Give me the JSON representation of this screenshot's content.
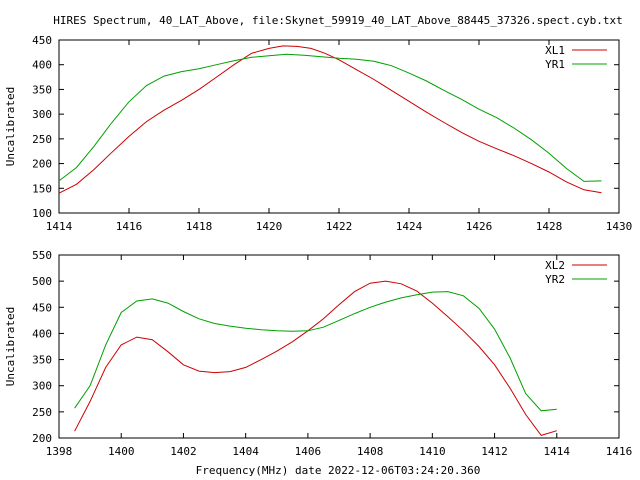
{
  "title": "HIRES Spectrum, 40_LAT_Above, file:Skynet_59919_40_LAT_Above_88445_37326.spect.cyb.txt",
  "footer_xlabel": "Frequency(MHz) date 2022-12-06T03:24:20.360",
  "colors": {
    "red": "#cc0000",
    "green": "#00a000",
    "axis": "#000000",
    "background": "#ffffff"
  },
  "chart_data": [
    {
      "type": "line",
      "ylabel": "Uncalibrated",
      "xlim": [
        1414,
        1430
      ],
      "ylim": [
        100,
        450
      ],
      "xticks": [
        1414,
        1416,
        1418,
        1420,
        1422,
        1424,
        1426,
        1428,
        1430
      ],
      "yticks": [
        100,
        150,
        200,
        250,
        300,
        350,
        400,
        450
      ],
      "grid": false,
      "legend_position": "top-right",
      "series": [
        {
          "name": "XL1",
          "color": "#cc0000",
          "x": [
            1414.0,
            1414.5,
            1415.0,
            1415.5,
            1416.0,
            1416.5,
            1417.0,
            1417.5,
            1418.0,
            1418.5,
            1419.0,
            1419.5,
            1420.0,
            1420.4,
            1420.8,
            1421.2,
            1421.6,
            1422.0,
            1422.5,
            1423.0,
            1423.5,
            1424.0,
            1424.5,
            1425.0,
            1425.5,
            1426.0,
            1426.5,
            1427.0,
            1427.5,
            1428.0,
            1428.5,
            1429.0,
            1429.5
          ],
          "y": [
            140,
            158,
            188,
            222,
            255,
            285,
            308,
            328,
            350,
            375,
            400,
            423,
            433,
            438,
            437,
            433,
            423,
            410,
            390,
            370,
            348,
            326,
            304,
            283,
            263,
            245,
            230,
            216,
            200,
            183,
            163,
            147,
            141
          ]
        },
        {
          "name": "YR1",
          "color": "#00a000",
          "x": [
            1414.0,
            1414.5,
            1415.0,
            1415.5,
            1416.0,
            1416.5,
            1417.0,
            1417.5,
            1418.0,
            1418.5,
            1419.0,
            1419.5,
            1420.0,
            1420.5,
            1421.0,
            1421.5,
            1422.0,
            1422.5,
            1423.0,
            1423.5,
            1424.0,
            1424.5,
            1425.0,
            1425.5,
            1426.0,
            1426.5,
            1427.0,
            1427.5,
            1428.0,
            1428.5,
            1429.0,
            1429.5
          ],
          "y": [
            165,
            192,
            235,
            282,
            325,
            358,
            377,
            386,
            392,
            400,
            408,
            415,
            418,
            421,
            419,
            416,
            413,
            411,
            407,
            398,
            383,
            367,
            348,
            330,
            310,
            293,
            272,
            248,
            221,
            190,
            164,
            165
          ]
        }
      ]
    },
    {
      "type": "line",
      "ylabel": "Uncalibrated",
      "xlim": [
        1398,
        1416
      ],
      "ylim": [
        200,
        550
      ],
      "xticks": [
        1398,
        1400,
        1402,
        1404,
        1406,
        1408,
        1410,
        1412,
        1414,
        1416
      ],
      "yticks": [
        200,
        250,
        300,
        350,
        400,
        450,
        500,
        550
      ],
      "grid": false,
      "legend_position": "top-right",
      "series": [
        {
          "name": "XL2",
          "color": "#cc0000",
          "x": [
            1398.5,
            1399.0,
            1399.5,
            1400.0,
            1400.5,
            1401.0,
            1401.5,
            1402.0,
            1402.5,
            1403.0,
            1403.5,
            1404.0,
            1404.5,
            1405.0,
            1405.5,
            1406.0,
            1406.5,
            1407.0,
            1407.5,
            1408.0,
            1408.5,
            1409.0,
            1409.5,
            1410.0,
            1410.5,
            1411.0,
            1411.5,
            1412.0,
            1412.5,
            1413.0,
            1413.5,
            1414.0
          ],
          "y": [
            213,
            270,
            335,
            378,
            393,
            388,
            365,
            340,
            328,
            325,
            327,
            335,
            350,
            366,
            384,
            405,
            428,
            455,
            480,
            496,
            500,
            495,
            481,
            458,
            432,
            405,
            375,
            340,
            295,
            245,
            205,
            214
          ]
        },
        {
          "name": "YR2",
          "color": "#00a000",
          "x": [
            1398.5,
            1399.0,
            1399.5,
            1400.0,
            1400.5,
            1401.0,
            1401.5,
            1402.0,
            1402.5,
            1403.0,
            1403.5,
            1404.0,
            1404.5,
            1405.0,
            1405.5,
            1406.0,
            1406.5,
            1407.0,
            1407.5,
            1408.0,
            1408.5,
            1409.0,
            1409.5,
            1410.0,
            1410.5,
            1411.0,
            1411.5,
            1412.0,
            1412.5,
            1413.0,
            1413.5,
            1414.0
          ],
          "y": [
            257,
            300,
            378,
            440,
            462,
            466,
            458,
            442,
            428,
            419,
            414,
            410,
            407,
            405,
            404,
            405,
            412,
            425,
            438,
            450,
            460,
            468,
            474,
            479,
            480,
            472,
            448,
            408,
            353,
            285,
            252,
            255
          ]
        }
      ]
    }
  ]
}
